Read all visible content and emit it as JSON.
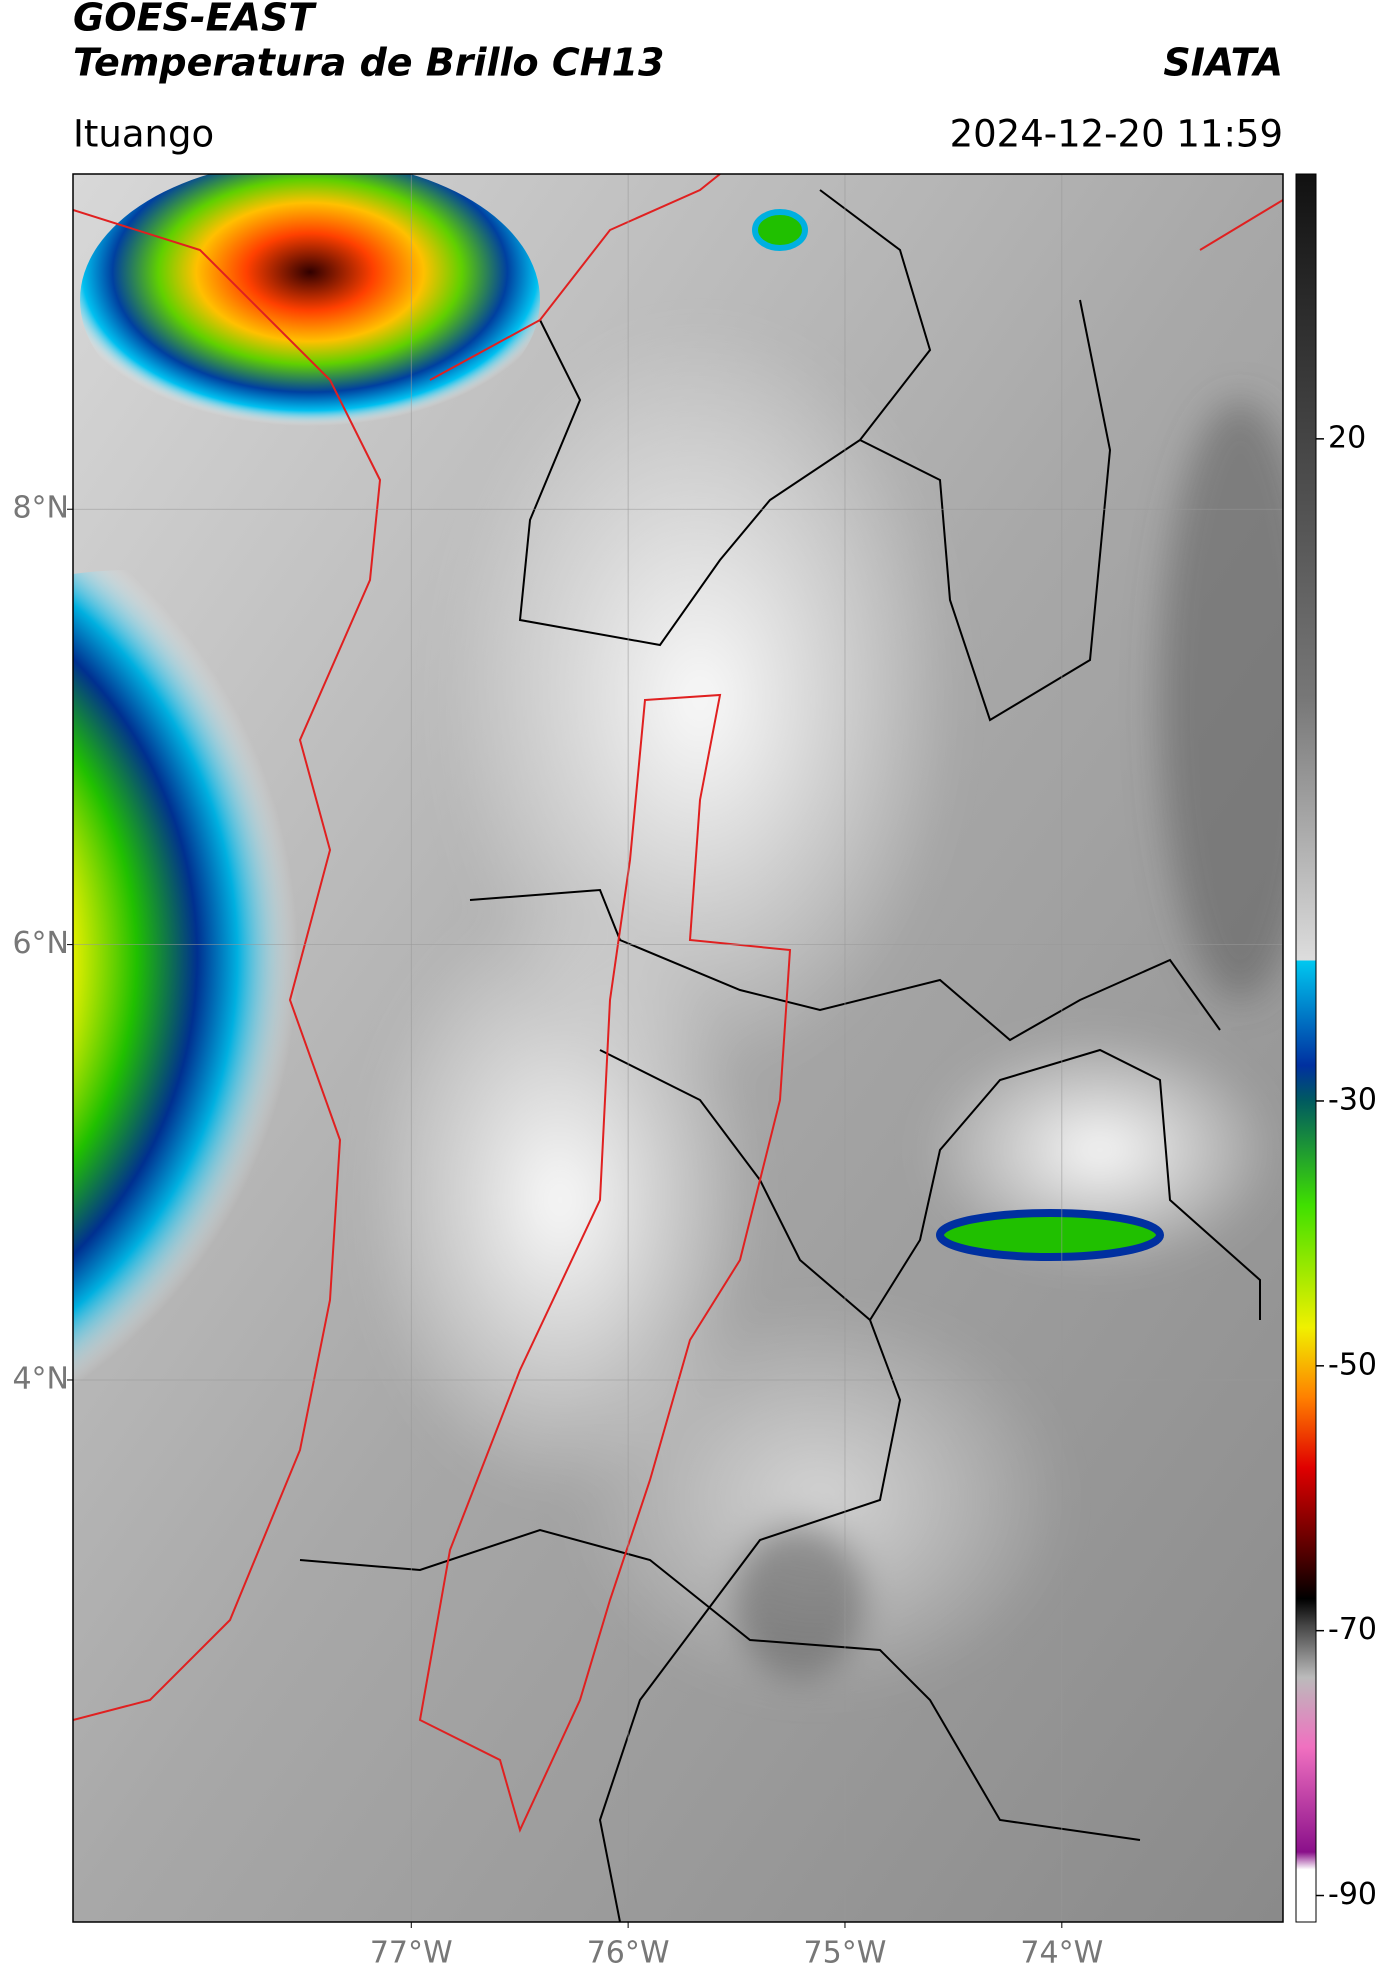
{
  "header": {
    "title": "GOES-EAST",
    "subtitle": "Temperatura de Brillo CH13",
    "source": "SIATA",
    "location": "Ituango",
    "datetime": "2024-12-20 11:59"
  },
  "map": {
    "xlim": [
      -78.56,
      -72.98
    ],
    "ylim": [
      1.51,
      9.54
    ],
    "xticks": [
      {
        "value": -77,
        "label": "77°W"
      },
      {
        "value": -76,
        "label": "76°W"
      },
      {
        "value": -75,
        "label": "75°W"
      },
      {
        "value": -74,
        "label": "74°W"
      }
    ],
    "yticks": [
      {
        "value": 8,
        "label": "8°N"
      },
      {
        "value": 6,
        "label": "6°N"
      },
      {
        "value": 4,
        "label": "4°N"
      }
    ]
  },
  "colorbar": {
    "lim": [
      -92,
      40
    ],
    "ticks": [
      20,
      -30,
      -50,
      -70,
      -90
    ]
  }
}
